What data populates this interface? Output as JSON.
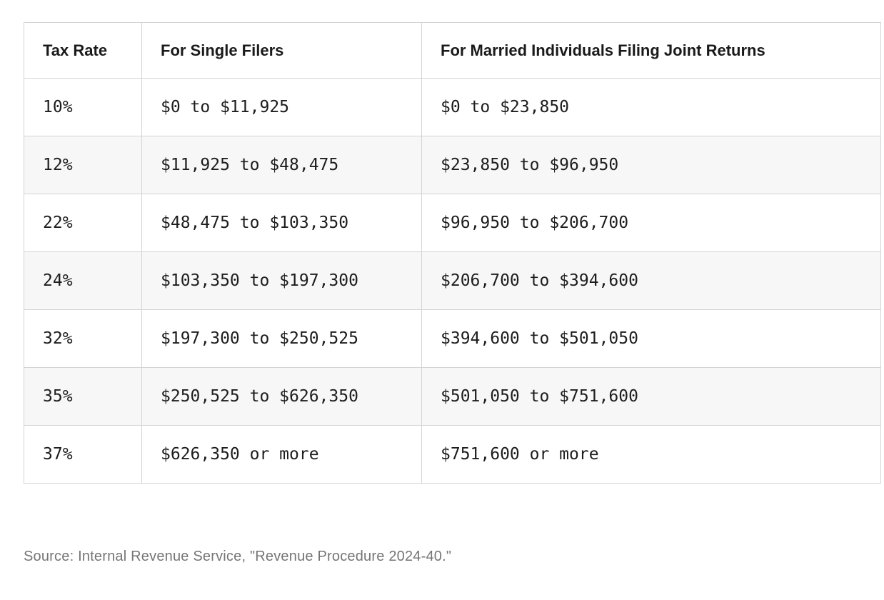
{
  "chart_data": {
    "type": "table",
    "columns": [
      "Tax Rate",
      "For Single Filers",
      "For Married Individuals Filing Joint Returns"
    ],
    "rows": [
      [
        "10%",
        "$0 to $11,925",
        "$0 to $23,850"
      ],
      [
        "12%",
        "$11,925 to $48,475",
        "$23,850 to $96,950"
      ],
      [
        "22%",
        "$48,475 to $103,350",
        "$96,950 to $206,700"
      ],
      [
        "24%",
        "$103,350 to $197,300",
        "$206,700 to $394,600"
      ],
      [
        "32%",
        "$197,300 to $250,525",
        "$394,600 to $501,050"
      ],
      [
        "35%",
        "$250,525 to $626,350",
        "$501,050 to $751,600"
      ],
      [
        "37%",
        "$626,350 or more",
        "$751,600 or more"
      ]
    ]
  },
  "source_note": "Source: Internal Revenue Service, \"Revenue Procedure 2024-40.\"",
  "colors": {
    "row_alt_background": "#f7f7f7",
    "table_border": "#d4d4d4",
    "cell_text": "#1d1d1d",
    "header_text": "#1a1a1a",
    "source_text": "#757575",
    "page_background": "#ffffff"
  }
}
